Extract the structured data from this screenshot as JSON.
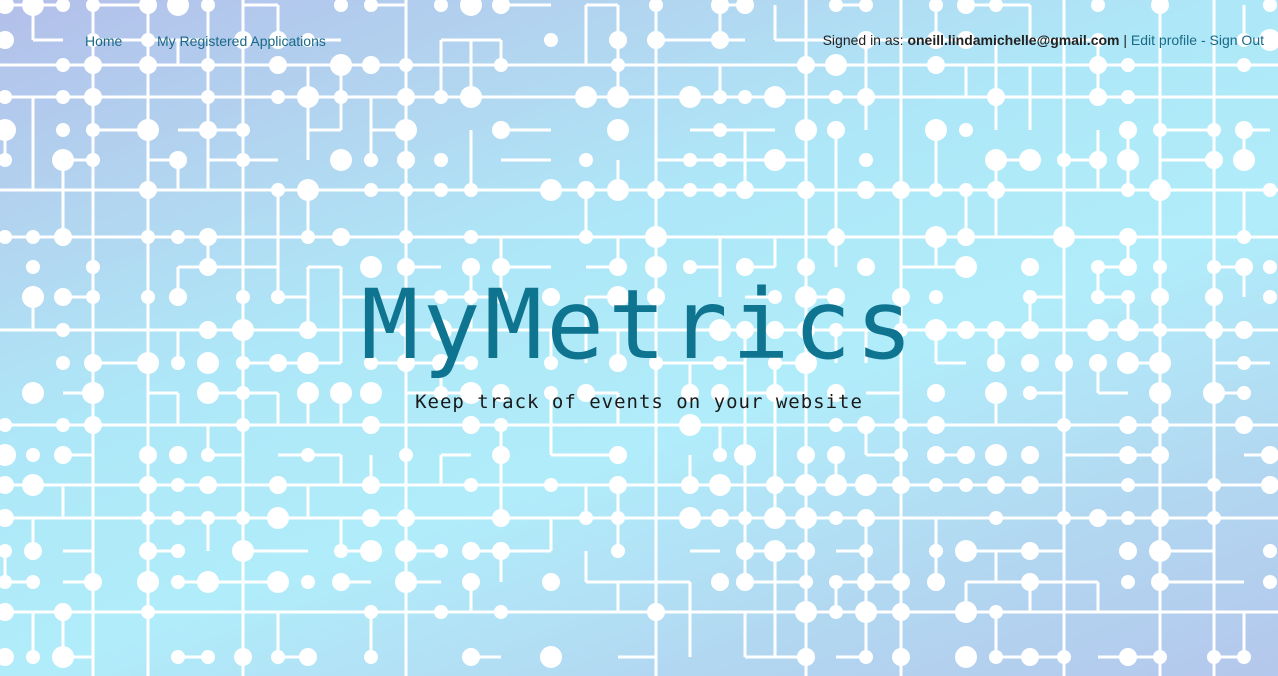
{
  "nav": {
    "home_label": "Home",
    "apps_label": "My Registered Applications"
  },
  "account": {
    "signed_in_prefix": "Signed in as:",
    "email": "oneill.lindamichelle@gmail.com",
    "separator": "|",
    "edit_profile_label": "Edit profile",
    "dash": "-",
    "sign_out_label": "Sign Out"
  },
  "hero": {
    "title": "MyMetrics",
    "subtitle": "Keep track of events on your website"
  },
  "colors": {
    "link": "#1a6a86",
    "title": "#0f7490",
    "pattern": "#ffffff"
  }
}
